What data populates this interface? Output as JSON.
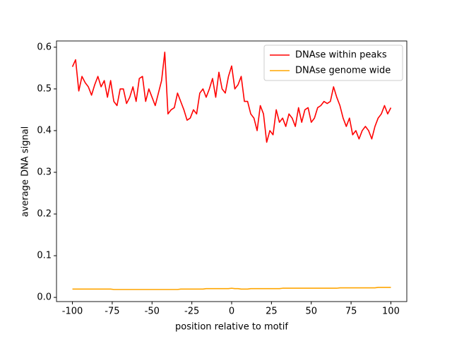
{
  "chart_data": {
    "type": "line",
    "xlabel": "position relative to motif",
    "ylabel": "average DNA signal",
    "x": [
      -100,
      -98,
      -96,
      -94,
      -92,
      -90,
      -88,
      -86,
      -84,
      -82,
      -80,
      -78,
      -76,
      -74,
      -72,
      -70,
      -68,
      -66,
      -64,
      -62,
      -60,
      -58,
      -56,
      -54,
      -52,
      -50,
      -48,
      -46,
      -44,
      -42,
      -40,
      -38,
      -36,
      -34,
      -32,
      -30,
      -28,
      -26,
      -24,
      -22,
      -20,
      -18,
      -16,
      -14,
      -12,
      -10,
      -8,
      -6,
      -4,
      -2,
      0,
      2,
      4,
      6,
      8,
      10,
      12,
      14,
      16,
      18,
      20,
      22,
      24,
      26,
      28,
      30,
      32,
      34,
      36,
      38,
      40,
      42,
      44,
      46,
      48,
      50,
      52,
      54,
      56,
      58,
      60,
      62,
      64,
      66,
      68,
      70,
      72,
      74,
      76,
      78,
      80,
      82,
      84,
      86,
      88,
      90,
      92,
      94,
      96,
      98,
      100
    ],
    "series": [
      {
        "name": "DNAse within peaks",
        "color": "#ff0000",
        "values": [
          0.553,
          0.57,
          0.495,
          0.53,
          0.515,
          0.505,
          0.485,
          0.51,
          0.53,
          0.505,
          0.52,
          0.48,
          0.52,
          0.47,
          0.46,
          0.5,
          0.5,
          0.465,
          0.48,
          0.505,
          0.47,
          0.525,
          0.53,
          0.47,
          0.5,
          0.48,
          0.46,
          0.49,
          0.52,
          0.588,
          0.44,
          0.45,
          0.455,
          0.49,
          0.47,
          0.45,
          0.425,
          0.43,
          0.45,
          0.44,
          0.49,
          0.5,
          0.48,
          0.5,
          0.525,
          0.48,
          0.54,
          0.5,
          0.49,
          0.53,
          0.555,
          0.5,
          0.51,
          0.53,
          0.47,
          0.47,
          0.44,
          0.43,
          0.4,
          0.46,
          0.44,
          0.372,
          0.4,
          0.39,
          0.45,
          0.42,
          0.43,
          0.41,
          0.44,
          0.43,
          0.41,
          0.455,
          0.42,
          0.45,
          0.455,
          0.42,
          0.43,
          0.455,
          0.46,
          0.47,
          0.465,
          0.47,
          0.505,
          0.48,
          0.46,
          0.43,
          0.41,
          0.43,
          0.39,
          0.4,
          0.38,
          0.4,
          0.41,
          0.4,
          0.38,
          0.41,
          0.43,
          0.44,
          0.46,
          0.44,
          0.455
        ]
      },
      {
        "name": "DNAse genome wide",
        "color": "#ffa500",
        "values": [
          0.02,
          0.02,
          0.02,
          0.02,
          0.02,
          0.02,
          0.02,
          0.02,
          0.02,
          0.02,
          0.02,
          0.02,
          0.02,
          0.019,
          0.019,
          0.019,
          0.019,
          0.019,
          0.019,
          0.019,
          0.019,
          0.019,
          0.019,
          0.019,
          0.019,
          0.019,
          0.019,
          0.019,
          0.019,
          0.019,
          0.019,
          0.019,
          0.019,
          0.019,
          0.02,
          0.02,
          0.02,
          0.02,
          0.02,
          0.02,
          0.02,
          0.02,
          0.021,
          0.021,
          0.021,
          0.021,
          0.021,
          0.021,
          0.021,
          0.021,
          0.022,
          0.021,
          0.021,
          0.02,
          0.02,
          0.02,
          0.021,
          0.021,
          0.021,
          0.021,
          0.021,
          0.021,
          0.021,
          0.021,
          0.021,
          0.021,
          0.022,
          0.022,
          0.022,
          0.022,
          0.022,
          0.022,
          0.022,
          0.022,
          0.022,
          0.022,
          0.022,
          0.022,
          0.022,
          0.022,
          0.022,
          0.022,
          0.022,
          0.022,
          0.023,
          0.023,
          0.023,
          0.023,
          0.023,
          0.023,
          0.023,
          0.023,
          0.023,
          0.023,
          0.023,
          0.023,
          0.024,
          0.024,
          0.024,
          0.024,
          0.024
        ]
      }
    ],
    "xlim": [
      -110,
      110
    ],
    "ylim": [
      -0.01,
      0.615
    ],
    "xticks": [
      -100,
      -75,
      -50,
      -25,
      0,
      25,
      50,
      75,
      100
    ],
    "yticks": [
      {
        "value": 0,
        "label": "0.0"
      },
      0.1,
      0.2,
      0.3,
      0.4,
      0.5,
      0.6
    ],
    "legend": "upper right"
  }
}
